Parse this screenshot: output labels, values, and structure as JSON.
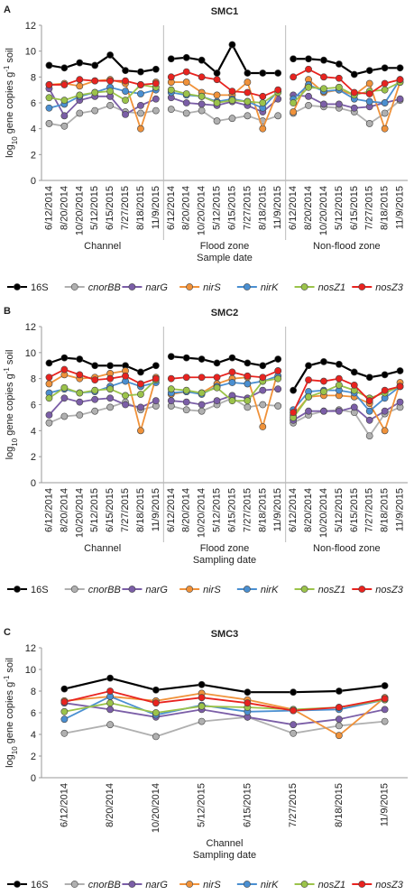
{
  "chart_data": [
    {
      "type": "line",
      "panel": "A",
      "title": "SMC1",
      "categories": [
        "6/12/2014",
        "8/20/2014",
        "10/20/2014",
        "5/12/2015",
        "6/15/2015",
        "7/27/2015",
        "8/18/2015",
        "11/9/2015",
        "6/12/2014",
        "8/20/2014",
        "10/20/2014",
        "5/12/2015",
        "6/15/2015",
        "7/27/2015",
        "8/18/2015",
        "11/9/2015",
        "6/12/2014",
        "8/20/2014",
        "10/20/2014",
        "5/12/2015",
        "6/15/2015",
        "7/27/2015",
        "8/18/2015",
        "11/9/2015"
      ],
      "group_labels": [
        "Channel",
        "Flood zone",
        "Non-flood zone"
      ],
      "x_label": "Sample date",
      "y_label": [
        "log",
        "10",
        " gene copies g",
        "-1",
        " soil"
      ],
      "ylim": [
        0,
        12
      ],
      "yticks": [
        0,
        2,
        4,
        6,
        8,
        10,
        12
      ],
      "series": [
        {
          "name": "16S",
          "italic": false,
          "color": "#000000",
          "values": [
            8.9,
            8.7,
            9.1,
            8.9,
            9.7,
            8.5,
            8.4,
            8.6,
            9.4,
            9.5,
            9.3,
            8.3,
            10.5,
            8.3,
            8.3,
            8.3,
            9.4,
            9.4,
            9.3,
            9.0,
            8.2,
            8.5,
            8.7,
            8.7
          ]
        },
        {
          "name": "cnorBB",
          "italic": true,
          "color": "#b0b0b0",
          "values": [
            4.4,
            4.2,
            5.2,
            5.4,
            5.8,
            5.3,
            5.2,
            5.4,
            5.5,
            5.2,
            5.4,
            4.6,
            4.8,
            5.0,
            4.6,
            5.0,
            5.2,
            5.8,
            5.7,
            5.6,
            5.3,
            4.4,
            5.2,
            6.2
          ]
        },
        {
          "name": "narG",
          "italic": true,
          "color": "#7b5ea7",
          "values": [
            7.1,
            5.0,
            6.2,
            6.5,
            6.5,
            5.1,
            5.8,
            6.3,
            6.4,
            6.0,
            5.9,
            5.8,
            6.1,
            5.8,
            5.3,
            6.3,
            6.6,
            6.5,
            5.9,
            5.9,
            5.6,
            5.7,
            6.0,
            6.3
          ]
        },
        {
          "name": "nirS",
          "italic": true,
          "color": "#f0923a",
          "values": [
            7.4,
            7.5,
            7.3,
            7.7,
            7.8,
            7.5,
            4.0,
            7.6,
            7.6,
            7.6,
            6.8,
            6.6,
            6.6,
            7.6,
            4.0,
            6.9,
            5.3,
            7.8,
            6.8,
            7.0,
            6.6,
            7.5,
            4.0,
            7.6
          ]
        },
        {
          "name": "nirK",
          "italic": true,
          "color": "#4a8fd1",
          "values": [
            5.6,
            5.9,
            6.5,
            6.8,
            7.2,
            6.9,
            6.7,
            7.0,
            6.8,
            6.6,
            6.5,
            6.1,
            6.3,
            6.1,
            5.6,
            6.9,
            6.3,
            7.4,
            6.9,
            7.0,
            6.3,
            6.1,
            6.0,
            7.8
          ]
        },
        {
          "name": "nosZ1",
          "italic": true,
          "color": "#9bc34a",
          "values": [
            6.4,
            6.2,
            6.6,
            6.8,
            6.9,
            6.2,
            7.4,
            7.2,
            7.0,
            6.7,
            6.5,
            6.0,
            6.2,
            6.1,
            6.0,
            6.8,
            6.0,
            7.2,
            7.1,
            7.2,
            6.6,
            6.9,
            7.0,
            7.6
          ]
        },
        {
          "name": "nosZ3",
          "italic": true,
          "color": "#e8231f",
          "values": [
            7.4,
            7.4,
            7.8,
            7.7,
            7.7,
            7.7,
            7.4,
            7.5,
            8.0,
            8.4,
            8.0,
            7.8,
            6.9,
            6.8,
            6.5,
            7.0,
            8.0,
            8.6,
            8.0,
            7.9,
            6.8,
            6.7,
            7.5,
            7.8
          ]
        }
      ]
    },
    {
      "type": "line",
      "panel": "B",
      "title": "SMC2",
      "categories": [
        "6/12/2014",
        "8/20/2014",
        "10/20/2014",
        "5/12/2015",
        "6/15/2015",
        "7/27/2015",
        "8/18/2015",
        "11/9/2015",
        "6/12/2014",
        "8/20/2014",
        "10/20/2014",
        "5/12/2015",
        "6/15/2015",
        "7/27/2015",
        "8/18/2015",
        "11/9/2015",
        "6/12/2014",
        "8/20/2014",
        "10/20/2014",
        "5/12/2015",
        "6/15/2015",
        "7/27/2015",
        "8/18/2015",
        "11/9/2015"
      ],
      "group_labels": [
        "Channel",
        "Flood zone",
        "Non-flood zone"
      ],
      "x_label": "Sampling date",
      "y_label": [
        "log",
        "10",
        " gene copies g",
        "-1",
        " soil"
      ],
      "ylim": [
        0,
        12
      ],
      "yticks": [
        0,
        2,
        4,
        6,
        8,
        10,
        12
      ],
      "series": [
        {
          "name": "16S",
          "italic": false,
          "color": "#000000",
          "values": [
            9.2,
            9.6,
            9.5,
            9.0,
            9.0,
            9.0,
            8.5,
            9.0,
            9.7,
            9.6,
            9.5,
            9.2,
            9.6,
            9.2,
            9.0,
            9.5,
            7.1,
            9.0,
            9.3,
            9.1,
            8.5,
            8.1,
            8.3,
            8.6
          ]
        },
        {
          "name": "cnorBB",
          "italic": true,
          "color": "#b0b0b0",
          "values": [
            4.6,
            5.1,
            5.2,
            5.5,
            5.8,
            6.2,
            5.6,
            5.9,
            5.9,
            5.6,
            5.5,
            6.0,
            6.5,
            5.8,
            6.0,
            5.9,
            4.6,
            5.2,
            5.5,
            5.6,
            5.4,
            3.6,
            5.3,
            5.8
          ]
        },
        {
          "name": "narG",
          "italic": true,
          "color": "#7b5ea7",
          "values": [
            5.2,
            6.5,
            6.2,
            6.4,
            6.5,
            6.0,
            5.8,
            6.3,
            6.3,
            6.2,
            6.0,
            6.3,
            6.7,
            6.5,
            7.1,
            7.2,
            4.8,
            5.5,
            5.5,
            5.5,
            5.8,
            4.8,
            5.5,
            6.2
          ]
        },
        {
          "name": "nirS",
          "italic": true,
          "color": "#f0923a",
          "values": [
            7.6,
            8.3,
            8.0,
            8.1,
            8.4,
            8.6,
            4.0,
            8.1,
            6.8,
            7.0,
            6.9,
            7.6,
            8.0,
            8.1,
            4.3,
            8.6,
            5.2,
            6.6,
            6.7,
            6.7,
            6.6,
            6.1,
            4.0,
            7.7
          ]
        },
        {
          "name": "nirK",
          "italic": true,
          "color": "#4a8fd1",
          "values": [
            6.9,
            7.2,
            6.9,
            7.0,
            7.4,
            7.8,
            7.4,
            7.7,
            6.9,
            7.0,
            6.8,
            7.4,
            7.7,
            7.6,
            7.8,
            8.2,
            5.6,
            7.0,
            7.1,
            7.1,
            6.9,
            5.5,
            6.5,
            7.4
          ]
        },
        {
          "name": "nosZ1",
          "italic": true,
          "color": "#9bc34a",
          "values": [
            6.5,
            7.3,
            6.9,
            7.1,
            7.2,
            6.7,
            6.8,
            7.9,
            7.2,
            7.1,
            6.9,
            7.3,
            6.3,
            6.3,
            7.8,
            8.0,
            5.0,
            6.6,
            7.0,
            7.5,
            7.1,
            6.5,
            6.9,
            7.4
          ]
        },
        {
          "name": "nosZ3",
          "italic": true,
          "color": "#e8231f",
          "values": [
            8.1,
            8.7,
            8.3,
            7.9,
            8.0,
            8.2,
            7.6,
            8.0,
            8.0,
            8.1,
            8.1,
            8.1,
            8.5,
            8.2,
            8.1,
            8.6,
            5.4,
            7.9,
            7.8,
            8.0,
            7.5,
            6.3,
            7.1,
            7.4
          ]
        }
      ]
    },
    {
      "type": "line",
      "panel": "C",
      "title": "SMC3",
      "categories": [
        "6/12/2014",
        "8/20/2014",
        "10/20/2014",
        "5/12/2015",
        "6/15/2015",
        "7/27/2015",
        "8/18/2015",
        "11/9/2015"
      ],
      "group_labels": [
        "Channel"
      ],
      "x_label": "Sampling date",
      "y_label": [
        "log",
        "10",
        " gene copies g",
        "-1",
        " soil"
      ],
      "ylim": [
        0,
        12
      ],
      "yticks": [
        0,
        2,
        4,
        6,
        8,
        10,
        12
      ],
      "series": [
        {
          "name": "16S",
          "italic": false,
          "color": "#000000",
          "values": [
            8.2,
            9.2,
            8.1,
            8.6,
            7.9,
            7.9,
            8.0,
            8.5
          ]
        },
        {
          "name": "cnorBB",
          "italic": true,
          "color": "#b0b0b0",
          "values": [
            4.1,
            4.9,
            3.8,
            5.2,
            5.6,
            4.1,
            4.8,
            5.2
          ]
        },
        {
          "name": "narG",
          "italic": true,
          "color": "#7b5ea7",
          "values": [
            6.9,
            6.3,
            5.6,
            6.3,
            5.6,
            4.9,
            5.4,
            6.3
          ]
        },
        {
          "name": "nirS",
          "italic": true,
          "color": "#f0923a",
          "values": [
            7.1,
            7.5,
            7.1,
            7.8,
            7.2,
            6.3,
            3.9,
            7.4
          ]
        },
        {
          "name": "nirK",
          "italic": true,
          "color": "#4a8fd1",
          "values": [
            5.4,
            7.5,
            5.8,
            6.7,
            6.1,
            6.2,
            6.3,
            7.2
          ]
        },
        {
          "name": "nosZ1",
          "italic": true,
          "color": "#9bc34a",
          "values": [
            6.1,
            6.9,
            6.0,
            6.6,
            6.5,
            6.3,
            6.5,
            7.2
          ]
        },
        {
          "name": "nosZ3",
          "italic": true,
          "color": "#e8231f",
          "values": [
            7.0,
            8.0,
            6.9,
            7.4,
            6.9,
            6.2,
            6.5,
            7.3
          ]
        }
      ]
    }
  ]
}
